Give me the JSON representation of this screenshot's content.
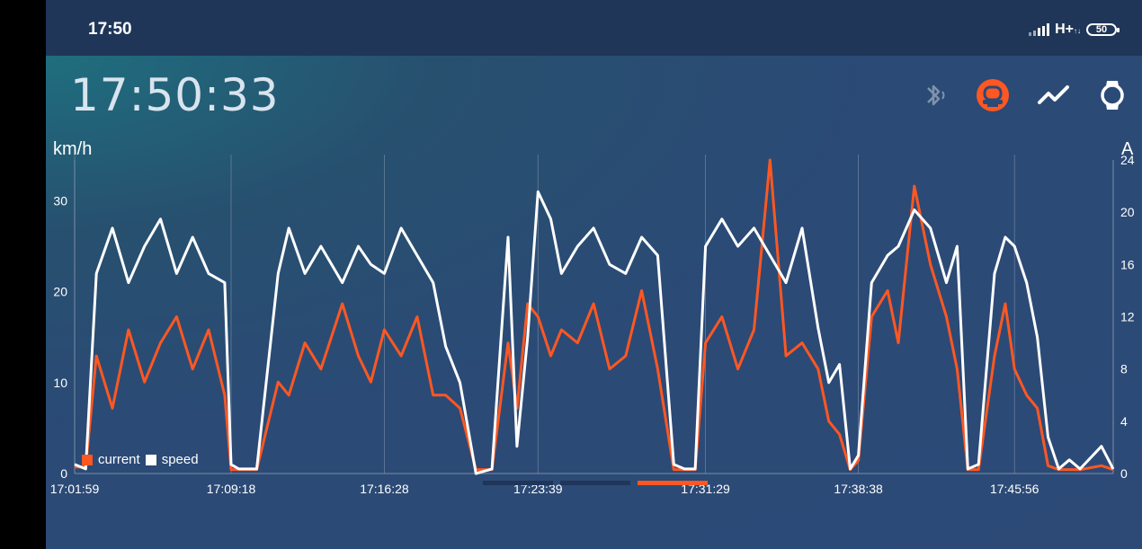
{
  "status_bar": {
    "time": "17:50",
    "network": "H+",
    "battery": "50"
  },
  "header": {
    "clock": "17:50:33"
  },
  "icons": [
    "bluetooth-icon",
    "scooter-icon",
    "chart-line-icon",
    "watch-icon"
  ],
  "colors": {
    "current": "#ff5722",
    "speed": "#ffffff",
    "accent": "#ff5722",
    "background": "#2b4a76"
  },
  "chart_data": {
    "type": "line",
    "ylabel": "km/h",
    "y2label": "A",
    "ylim": [
      0,
      34.5
    ],
    "y2lim": [
      0,
      24
    ],
    "yticks": [
      0,
      10,
      20,
      30
    ],
    "y2ticks": [
      0,
      4,
      8,
      12,
      16,
      20,
      24
    ],
    "xlim": [
      "17:01:59",
      "17:50:33"
    ],
    "xticks": [
      "17:01:59",
      "17:09:18",
      "17:16:28",
      "17:23:39",
      "17:31:29",
      "17:38:38",
      "17:45:56"
    ],
    "grid": "vertical",
    "legend_position": "bottom-left",
    "series": [
      {
        "name": "speed",
        "axis": "left",
        "x": [
          "17:01:59",
          "17:02:30",
          "17:03:00",
          "17:03:45",
          "17:04:30",
          "17:05:15",
          "17:06:00",
          "17:06:45",
          "17:07:30",
          "17:08:15",
          "17:09:00",
          "17:09:18",
          "17:09:40",
          "17:10:30",
          "17:11:30",
          "17:12:00",
          "17:12:45",
          "17:13:30",
          "17:14:30",
          "17:15:15",
          "17:15:50",
          "17:16:28",
          "17:17:15",
          "17:18:00",
          "17:18:45",
          "17:19:20",
          "17:20:00",
          "17:20:45",
          "17:21:30",
          "17:22:15",
          "17:22:40",
          "17:23:10",
          "17:23:39",
          "17:24:15",
          "17:24:45",
          "17:25:30",
          "17:26:15",
          "17:27:00",
          "17:27:45",
          "17:28:30",
          "17:29:15",
          "17:30:00",
          "17:30:30",
          "17:31:00",
          "17:31:29",
          "17:32:15",
          "17:33:00",
          "17:33:45",
          "17:34:30",
          "17:35:15",
          "17:36:00",
          "17:36:45",
          "17:37:15",
          "17:37:45",
          "17:38:15",
          "17:38:38",
          "17:39:15",
          "17:40:00",
          "17:40:30",
          "17:41:15",
          "17:42:00",
          "17:42:45",
          "17:43:15",
          "17:43:45",
          "17:44:15",
          "17:45:00",
          "17:45:30",
          "17:45:56",
          "17:46:30",
          "17:47:00",
          "17:47:30",
          "17:48:00",
          "17:48:30",
          "17:49:00",
          "17:50:00",
          "17:50:33"
        ],
        "values": [
          1,
          0.5,
          22,
          27,
          21,
          25,
          28,
          22,
          26,
          22,
          21,
          1,
          0.5,
          0.5,
          22,
          27,
          22,
          25,
          21,
          25,
          23,
          22,
          27,
          24,
          21,
          14,
          10,
          0,
          0.5,
          26,
          3,
          15,
          31,
          28,
          22,
          25,
          27,
          23,
          22,
          26,
          24,
          1,
          0.5,
          0.5,
          25,
          28,
          25,
          27,
          24,
          21,
          27,
          16,
          10,
          12,
          0.5,
          2,
          21,
          24,
          25,
          29,
          27,
          21,
          25,
          0.5,
          1,
          22,
          26,
          25,
          21,
          15,
          4,
          0.5,
          1.5,
          0.5,
          3,
          0.5
        ]
      },
      {
        "name": "current",
        "axis": "right",
        "x": [
          "17:01:59",
          "17:02:30",
          "17:03:00",
          "17:03:45",
          "17:04:30",
          "17:05:15",
          "17:06:00",
          "17:06:45",
          "17:07:30",
          "17:08:15",
          "17:09:00",
          "17:09:18",
          "17:09:40",
          "17:10:30",
          "17:11:30",
          "17:12:00",
          "17:12:45",
          "17:13:30",
          "17:14:30",
          "17:15:15",
          "17:15:50",
          "17:16:28",
          "17:17:15",
          "17:18:00",
          "17:18:45",
          "17:19:20",
          "17:20:00",
          "17:20:45",
          "17:21:30",
          "17:22:15",
          "17:22:40",
          "17:23:10",
          "17:23:39",
          "17:24:15",
          "17:24:45",
          "17:25:30",
          "17:26:15",
          "17:27:00",
          "17:27:45",
          "17:28:30",
          "17:29:15",
          "17:30:00",
          "17:30:30",
          "17:31:00",
          "17:31:29",
          "17:32:15",
          "17:33:00",
          "17:33:45",
          "17:34:30",
          "17:35:15",
          "17:36:00",
          "17:36:45",
          "17:37:15",
          "17:37:45",
          "17:38:15",
          "17:38:38",
          "17:39:15",
          "17:40:00",
          "17:40:30",
          "17:41:15",
          "17:42:00",
          "17:42:45",
          "17:43:15",
          "17:43:45",
          "17:44:15",
          "17:45:00",
          "17:45:30",
          "17:45:56",
          "17:46:30",
          "17:47:00",
          "17:47:30",
          "17:48:00",
          "17:48:30",
          "17:49:00",
          "17:50:00",
          "17:50:33"
        ],
        "values": [
          0.5,
          0.5,
          9,
          5,
          11,
          7,
          10,
          12,
          8,
          11,
          6,
          0.3,
          0.3,
          0.3,
          7,
          6,
          10,
          8,
          13,
          9,
          7,
          11,
          9,
          12,
          6,
          6,
          5,
          0.3,
          0.3,
          10,
          5,
          13,
          12,
          9,
          11,
          10,
          13,
          8,
          9,
          14,
          8,
          0.3,
          0.3,
          0.3,
          10,
          12,
          8,
          11,
          24,
          9,
          10,
          8,
          4,
          3,
          0.3,
          1,
          12,
          14,
          10,
          22,
          16,
          12,
          8,
          0.3,
          0.3,
          9,
          13,
          8,
          6,
          5,
          0.6,
          0.3,
          0.3,
          0.3,
          0.6,
          0.3
        ]
      }
    ]
  },
  "legend": {
    "current": "current",
    "speed": "speed"
  },
  "pager": {
    "count": 3,
    "active_index": 2
  }
}
